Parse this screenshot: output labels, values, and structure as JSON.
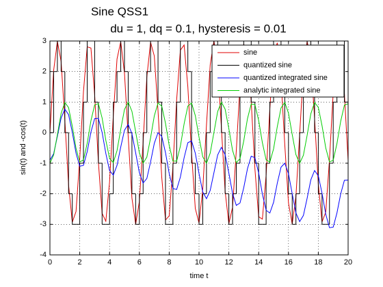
{
  "chart_data": {
    "type": "line",
    "title": "Sine QSS1",
    "subtitle": "du = 1, dq = 0.1, hysteresis = 0.01",
    "x_label": "time t",
    "y_label": "sin(t) and -cos(t)",
    "x": [
      0,
      0.25,
      0.5,
      0.75,
      1,
      1.25,
      1.5,
      1.75,
      2,
      2.25,
      2.5,
      2.75,
      3,
      3.25,
      3.5,
      3.75,
      4,
      4.25,
      4.5,
      4.75,
      5,
      5.25,
      5.5,
      5.75,
      6,
      6.25,
      6.5,
      6.75,
      7,
      7.25,
      7.5,
      7.75,
      8,
      8.25,
      8.5,
      8.75,
      9,
      9.25,
      9.5,
      9.75,
      10,
      10.25,
      10.5,
      10.75,
      11,
      11.25,
      11.5,
      11.75,
      12,
      12.25,
      12.5,
      12.75,
      13,
      13.25,
      13.5,
      13.75,
      14,
      14.25,
      14.5,
      14.75,
      15,
      15.25,
      15.5,
      15.75,
      16,
      16.25,
      16.5,
      16.75,
      17,
      17.25,
      17.5,
      17.75,
      18,
      18.25,
      18.5,
      18.75,
      19,
      19.25,
      19.5,
      19.75,
      20
    ],
    "series": [
      {
        "name": "sine",
        "color": "#e00000",
        "values": [
          0,
          2.04,
          2.99,
          2.33,
          0.42,
          -1.71,
          -2.93,
          -2.58,
          -0.84,
          1.35,
          2.81,
          2.77,
          1.24,
          -0.96,
          -2.64,
          -2.9,
          -1.61,
          0.55,
          2.41,
          2.98,
          1.95,
          -0.13,
          -2.14,
          -3,
          -2.25,
          -0.3,
          1.82,
          2.96,
          2.51,
          0.72,
          -1.46,
          -2.86,
          -2.72,
          -1.12,
          1.08,
          2.7,
          2.87,
          1.5,
          -0.67,
          -2.48,
          -2.96,
          -1.85,
          0.25,
          2.22,
          3,
          2.17,
          0.17,
          -1.92,
          -2.98,
          -2.44,
          -0.59,
          1.57,
          2.89,
          2.66,
          1.01,
          -1.19,
          -2.75,
          -2.83,
          -1.39,
          0.79,
          2.55,
          2.94,
          1.75,
          -0.38,
          -2.3,
          -2.99,
          -2.08,
          -0.05,
          2.01,
          2.99,
          2.36,
          0.47,
          -1.68,
          -2.92,
          -2.6,
          -0.88,
          1.31,
          2.8,
          2.79,
          1.28,
          -0.91
        ]
      },
      {
        "name": "quantized sine",
        "color": "#000000",
        "step": true,
        "values": [
          0,
          2,
          3,
          2,
          0,
          -2,
          -3,
          -3,
          -1,
          1,
          3,
          3,
          1,
          -1,
          -3,
          -3,
          -2,
          1,
          2,
          3,
          2,
          0,
          -2,
          -3,
          -2,
          0,
          2,
          3,
          3,
          1,
          -1,
          -3,
          -3,
          -1,
          1,
          3,
          3,
          2,
          -1,
          -2,
          -3,
          -2,
          0,
          2,
          3,
          2,
          0,
          -2,
          -3,
          -2,
          -1,
          2,
          3,
          3,
          1,
          -1,
          -3,
          -3,
          -1,
          1,
          3,
          3,
          2,
          0,
          -2,
          -3,
          -2,
          0,
          2,
          3,
          2,
          0,
          -2,
          -3,
          -3,
          -1,
          1,
          3,
          3,
          1,
          -1
        ]
      },
      {
        "name": "quantized integrated sine",
        "color": "#0000ff",
        "values": [
          -0.9,
          -0.69,
          -0.12,
          0.48,
          0.77,
          0.59,
          0.01,
          -0.67,
          -1.1,
          -1.07,
          -0.62,
          0.02,
          0.46,
          0.47,
          0.01,
          -0.68,
          -1.24,
          -1.39,
          -1.07,
          -0.47,
          0.08,
          0.27,
          -0.03,
          -0.66,
          -1.31,
          -1.65,
          -1.5,
          -0.96,
          -0.35,
          0,
          -0.12,
          -0.65,
          -1.34,
          -1.83,
          -1.86,
          -1.45,
          -0.82,
          -0.33,
          -0.27,
          -0.67,
          -1.34,
          -1.94,
          -2.16,
          -1.89,
          -1.31,
          -0.73,
          -0.48,
          -0.72,
          -1.32,
          -1.99,
          -2.38,
          -2.3,
          -1.8,
          -1.18,
          -0.77,
          -0.82,
          -1.32,
          -2.01,
          -2.54,
          -2.63,
          -2.28,
          -1.65,
          -1.13,
          -1,
          -1.34,
          -2,
          -2.63,
          -2.91,
          -2.71,
          -2.15,
          -1.54,
          -1.24,
          -1.41,
          -1.98,
          -2.67,
          -3.11,
          -3.09,
          -2.63,
          -2.01,
          -1.56,
          -1.55
        ]
      },
      {
        "name": "analytic integrated sine",
        "color": "#00cc00",
        "values": [
          -1,
          -0.73,
          -0.07,
          0.63,
          0.99,
          0.82,
          0.21,
          -0.51,
          -0.96,
          -0.89,
          -0.35,
          0.39,
          0.91,
          0.95,
          0.48,
          -0.25,
          -0.84,
          -0.98,
          -0.59,
          0.11,
          0.76,
          1,
          0.7,
          0.03,
          -0.66,
          -1,
          -0.8,
          -0.17,
          0.55,
          0.97,
          0.87,
          0.31,
          -0.42,
          -0.93,
          -0.93,
          -0.44,
          0.29,
          0.87,
          0.97,
          0.56,
          -0.15,
          -0.79,
          -1,
          -0.67,
          0.01,
          0.69,
          1,
          0.77,
          0.13,
          -0.58,
          -0.98,
          -0.85,
          -0.27,
          0.46,
          0.94,
          0.92,
          0.4,
          -0.33,
          -0.89,
          -0.96,
          -0.53,
          0.2,
          0.81,
          0.99,
          0.64,
          -0.06,
          -0.72,
          -1,
          -0.74,
          -0.09,
          0.62,
          0.99,
          0.83,
          0.23,
          -0.5,
          -0.96,
          -0.9,
          -0.36,
          0.37,
          0.9,
          0.95
        ]
      }
    ],
    "xlim": [
      0,
      20
    ],
    "xticks": [
      0,
      2,
      4,
      6,
      8,
      10,
      12,
      14,
      16,
      18,
      20
    ],
    "ylim": [
      -4,
      3
    ],
    "yticks": [
      -4,
      -3,
      -2,
      -1,
      0,
      1,
      2,
      3
    ],
    "grid": true,
    "legend": "northeast"
  }
}
